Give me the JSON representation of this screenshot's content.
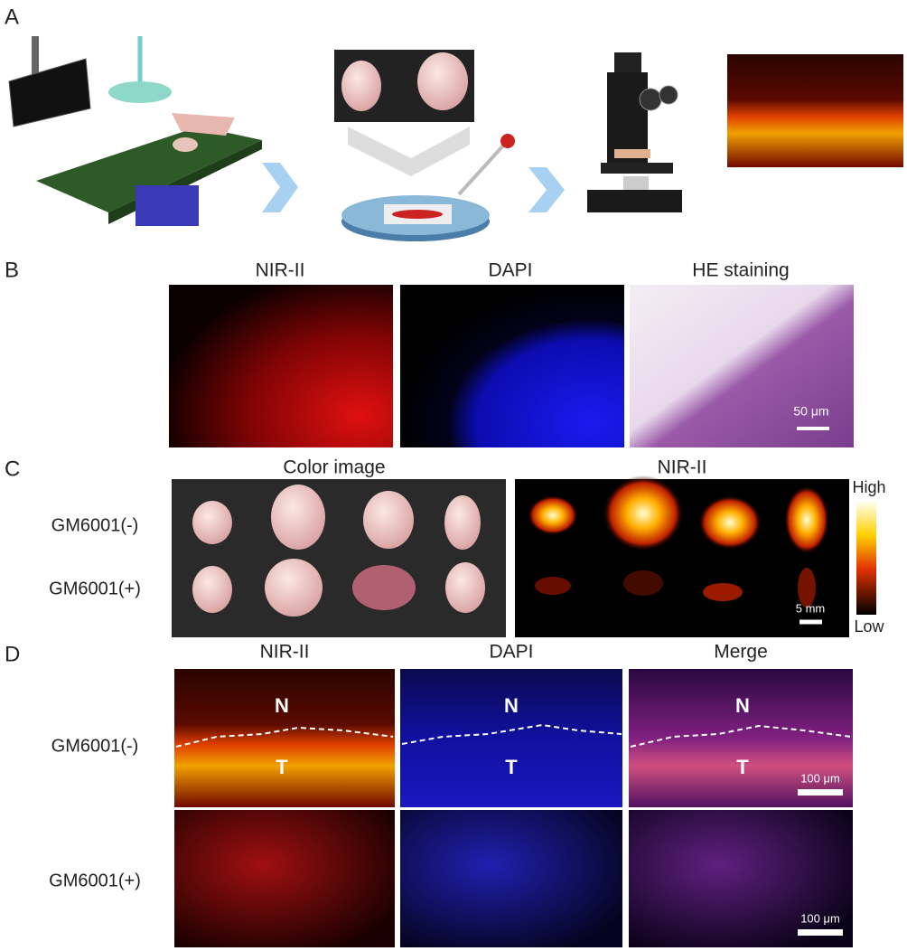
{
  "panels": {
    "a": {
      "label": "A"
    },
    "b": {
      "label": "B",
      "columns": [
        "NIR-II",
        "DAPI",
        "HE staining"
      ],
      "scale_bar": "50 μm"
    },
    "c": {
      "label": "C",
      "columns": [
        "Color image",
        "NIR-II"
      ],
      "rows": [
        "GM6001(-)",
        "GM6001(+)"
      ],
      "colorbar": {
        "high": "High",
        "low": "Low"
      },
      "scale_bar": "5 mm"
    },
    "d": {
      "label": "D",
      "columns": [
        "NIR-II",
        "DAPI",
        "Merge"
      ],
      "rows": [
        "GM6001(-)",
        "GM6001(+)"
      ],
      "region_labels": {
        "normal": "N",
        "tumor": "T"
      },
      "scale_bar": "100 μm"
    }
  }
}
